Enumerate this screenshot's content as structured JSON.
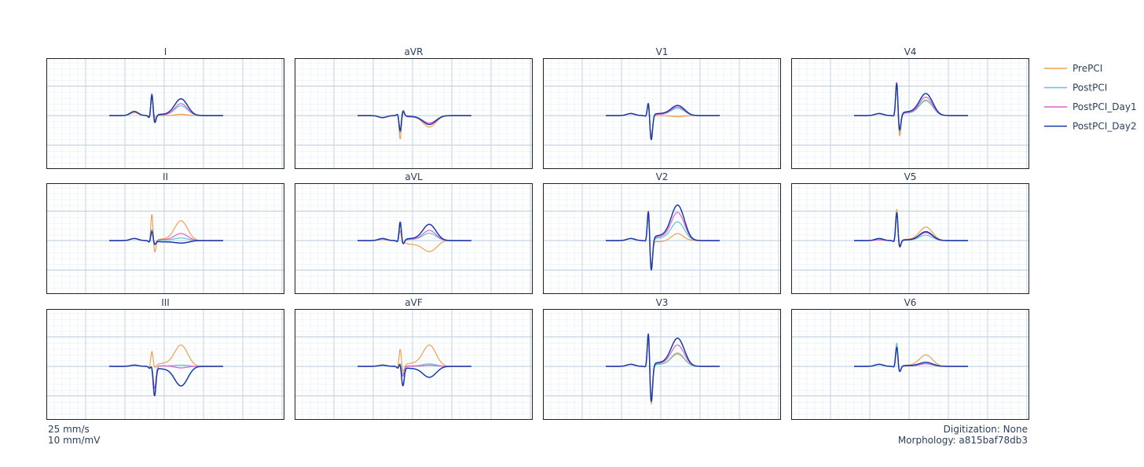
{
  "chart_data": {
    "type": "line",
    "layout": "3x4 grid of ECG lead panels",
    "grid": true,
    "legend_position": "right",
    "leads": [
      "I",
      "II",
      "III",
      "aVR",
      "aVL",
      "aVF",
      "V1",
      "V2",
      "V3",
      "V4",
      "V5",
      "V6"
    ],
    "series": [
      {
        "name": "PrePCI",
        "color": "#f0a050"
      },
      {
        "name": "PostPCI",
        "color": "#5cc8cc"
      },
      {
        "name": "PostPCI_Day1",
        "color": "#e060d0"
      },
      {
        "name": "PostPCI_Day2",
        "color": "#1a3aa8"
      }
    ],
    "beats": {
      "I": [
        {
          "p": 0.07,
          "q": -0.03,
          "r": 0.45,
          "s": -0.05,
          "st": 0.0,
          "t": 0.03
        },
        {
          "p": 0.1,
          "q": -0.08,
          "r": 0.52,
          "s": -0.12,
          "st": 0.03,
          "t": 0.22
        },
        {
          "p": 0.1,
          "q": -0.08,
          "r": 0.58,
          "s": -0.15,
          "st": 0.02,
          "t": 0.28
        },
        {
          "p": 0.1,
          "q": -0.08,
          "r": 0.55,
          "s": -0.2,
          "st": 0.05,
          "t": 0.38
        }
      ],
      "II": [
        {
          "p": 0.05,
          "q": -0.08,
          "r": 0.7,
          "s": -0.32,
          "st": 0.06,
          "t": 0.45
        },
        {
          "p": 0.05,
          "q": -0.05,
          "r": 0.3,
          "s": -0.1,
          "st": 0.02,
          "t": 0.05
        },
        {
          "p": 0.05,
          "q": -0.05,
          "r": 0.25,
          "s": -0.12,
          "st": 0.04,
          "t": 0.15
        },
        {
          "p": 0.05,
          "q": -0.05,
          "r": 0.25,
          "s": -0.1,
          "st": -0.05,
          "t": -0.03
        }
      ],
      "III": [
        {
          "p": 0.03,
          "q": -0.05,
          "r": 0.38,
          "s": -0.05,
          "st": 0.12,
          "t": 0.45
        },
        {
          "p": 0.03,
          "q": -0.05,
          "r": 0.05,
          "s": -0.55,
          "st": 0.02,
          "t": 0.02
        },
        {
          "p": 0.03,
          "q": -0.05,
          "r": 0.05,
          "s": -0.55,
          "st": 0.02,
          "t": -0.05
        },
        {
          "p": 0.03,
          "q": -0.05,
          "r": 0.05,
          "s": -0.72,
          "st": -0.1,
          "t": -0.42
        }
      ],
      "aVR": [
        {
          "p": -0.05,
          "q": 0.05,
          "r": -0.6,
          "s": 0.1,
          "st": -0.05,
          "t": -0.25
        },
        {
          "p": -0.05,
          "q": 0.05,
          "r": -0.45,
          "s": 0.15,
          "st": -0.05,
          "t": -0.18
        },
        {
          "p": -0.05,
          "q": 0.05,
          "r": -0.42,
          "s": 0.15,
          "st": -0.05,
          "t": -0.15
        },
        {
          "p": -0.05,
          "q": 0.05,
          "r": -0.4,
          "s": 0.12,
          "st": -0.03,
          "t": -0.2
        }
      ],
      "aVL": [
        {
          "p": 0.03,
          "q": -0.03,
          "r": 0.25,
          "s": -0.05,
          "st": -0.15,
          "t": -0.18
        },
        {
          "p": 0.05,
          "q": -0.05,
          "r": 0.4,
          "s": -0.1,
          "st": 0.05,
          "t": 0.15
        },
        {
          "p": 0.05,
          "q": -0.05,
          "r": 0.45,
          "s": -0.1,
          "st": 0.05,
          "t": 0.22
        },
        {
          "p": 0.05,
          "q": -0.05,
          "r": 0.48,
          "s": -0.1,
          "st": 0.08,
          "t": 0.35
        }
      ],
      "aVF": [
        {
          "p": 0.03,
          "q": -0.05,
          "r": 0.45,
          "s": -0.15,
          "st": 0.12,
          "t": 0.45
        },
        {
          "p": 0.03,
          "q": -0.05,
          "r": 0.1,
          "s": -0.2,
          "st": 0.02,
          "t": 0.05
        },
        {
          "p": 0.03,
          "q": -0.05,
          "r": 0.08,
          "s": -0.25,
          "st": 0.0,
          "t": 0.03
        },
        {
          "p": 0.03,
          "q": -0.05,
          "r": 0.1,
          "s": -0.48,
          "st": -0.08,
          "t": -0.22
        }
      ],
      "V1": [
        {
          "p": 0.05,
          "q": -0.03,
          "r": 0.35,
          "s": -0.55,
          "st": 0.0,
          "t": -0.03
        },
        {
          "p": 0.05,
          "q": -0.03,
          "r": 0.35,
          "s": -0.58,
          "st": 0.05,
          "t": 0.15
        },
        {
          "p": 0.05,
          "q": -0.03,
          "r": 0.35,
          "s": -0.58,
          "st": 0.05,
          "t": 0.18
        },
        {
          "p": 0.05,
          "q": -0.03,
          "r": 0.38,
          "s": -0.62,
          "st": 0.08,
          "t": 0.2
        }
      ],
      "V2": [
        {
          "p": 0.05,
          "q": -0.03,
          "r": 0.8,
          "s": -0.75,
          "st": -0.05,
          "t": 0.2
        },
        {
          "p": 0.05,
          "q": -0.03,
          "r": 0.8,
          "s": -0.75,
          "st": 0.1,
          "t": 0.4
        },
        {
          "p": 0.05,
          "q": -0.03,
          "r": 0.8,
          "s": -0.75,
          "st": 0.15,
          "t": 0.6
        },
        {
          "p": 0.05,
          "q": -0.03,
          "r": 0.82,
          "s": -0.78,
          "st": 0.2,
          "t": 0.75
        }
      ],
      "V3": [
        {
          "p": 0.05,
          "q": -0.03,
          "r": 0.9,
          "s": -0.98,
          "st": 0.08,
          "t": 0.25
        },
        {
          "p": 0.05,
          "q": -0.03,
          "r": 0.9,
          "s": -0.9,
          "st": 0.08,
          "t": 0.28
        },
        {
          "p": 0.05,
          "q": -0.03,
          "r": 0.9,
          "s": -0.9,
          "st": 0.12,
          "t": 0.45
        },
        {
          "p": 0.05,
          "q": -0.03,
          "r": 0.92,
          "s": -0.92,
          "st": 0.15,
          "t": 0.6
        }
      ],
      "V4": [
        {
          "p": 0.05,
          "q": -0.03,
          "r": 0.9,
          "s": -0.55,
          "st": 0.1,
          "t": 0.3
        },
        {
          "p": 0.05,
          "q": -0.03,
          "r": 0.88,
          "s": -0.45,
          "st": 0.1,
          "t": 0.32
        },
        {
          "p": 0.05,
          "q": -0.03,
          "r": 0.88,
          "s": -0.42,
          "st": 0.12,
          "t": 0.38
        },
        {
          "p": 0.05,
          "q": -0.03,
          "r": 0.85,
          "s": -0.4,
          "st": 0.15,
          "t": 0.45
        }
      ],
      "V5": [
        {
          "p": 0.05,
          "q": -0.05,
          "r": 0.8,
          "s": -0.15,
          "st": 0.05,
          "t": 0.3
        },
        {
          "p": 0.05,
          "q": -0.05,
          "r": 0.7,
          "s": -0.2,
          "st": 0.02,
          "t": 0.12
        },
        {
          "p": 0.02,
          "q": -0.05,
          "r": 0.7,
          "s": -0.18,
          "st": 0.02,
          "t": 0.18
        },
        {
          "p": 0.05,
          "q": -0.05,
          "r": 0.72,
          "s": -0.18,
          "st": 0.03,
          "t": 0.2
        }
      ],
      "V6": [
        {
          "p": 0.05,
          "q": -0.03,
          "r": 0.5,
          "s": -0.15,
          "st": 0.05,
          "t": 0.25
        },
        {
          "p": 0.05,
          "q": -0.03,
          "r": 0.6,
          "s": -0.15,
          "st": 0.02,
          "t": 0.05
        },
        {
          "p": 0.05,
          "q": -0.03,
          "r": 0.5,
          "s": -0.15,
          "st": 0.02,
          "t": 0.05
        },
        {
          "p": 0.05,
          "q": -0.03,
          "r": 0.5,
          "s": -0.15,
          "st": 0.03,
          "t": 0.08
        }
      ]
    }
  },
  "footer": {
    "speed": "25 mm/s",
    "gain": "10 mm/mV",
    "digitization": "Digitization: None",
    "morphology": "Morphology: a815baf78db3"
  }
}
